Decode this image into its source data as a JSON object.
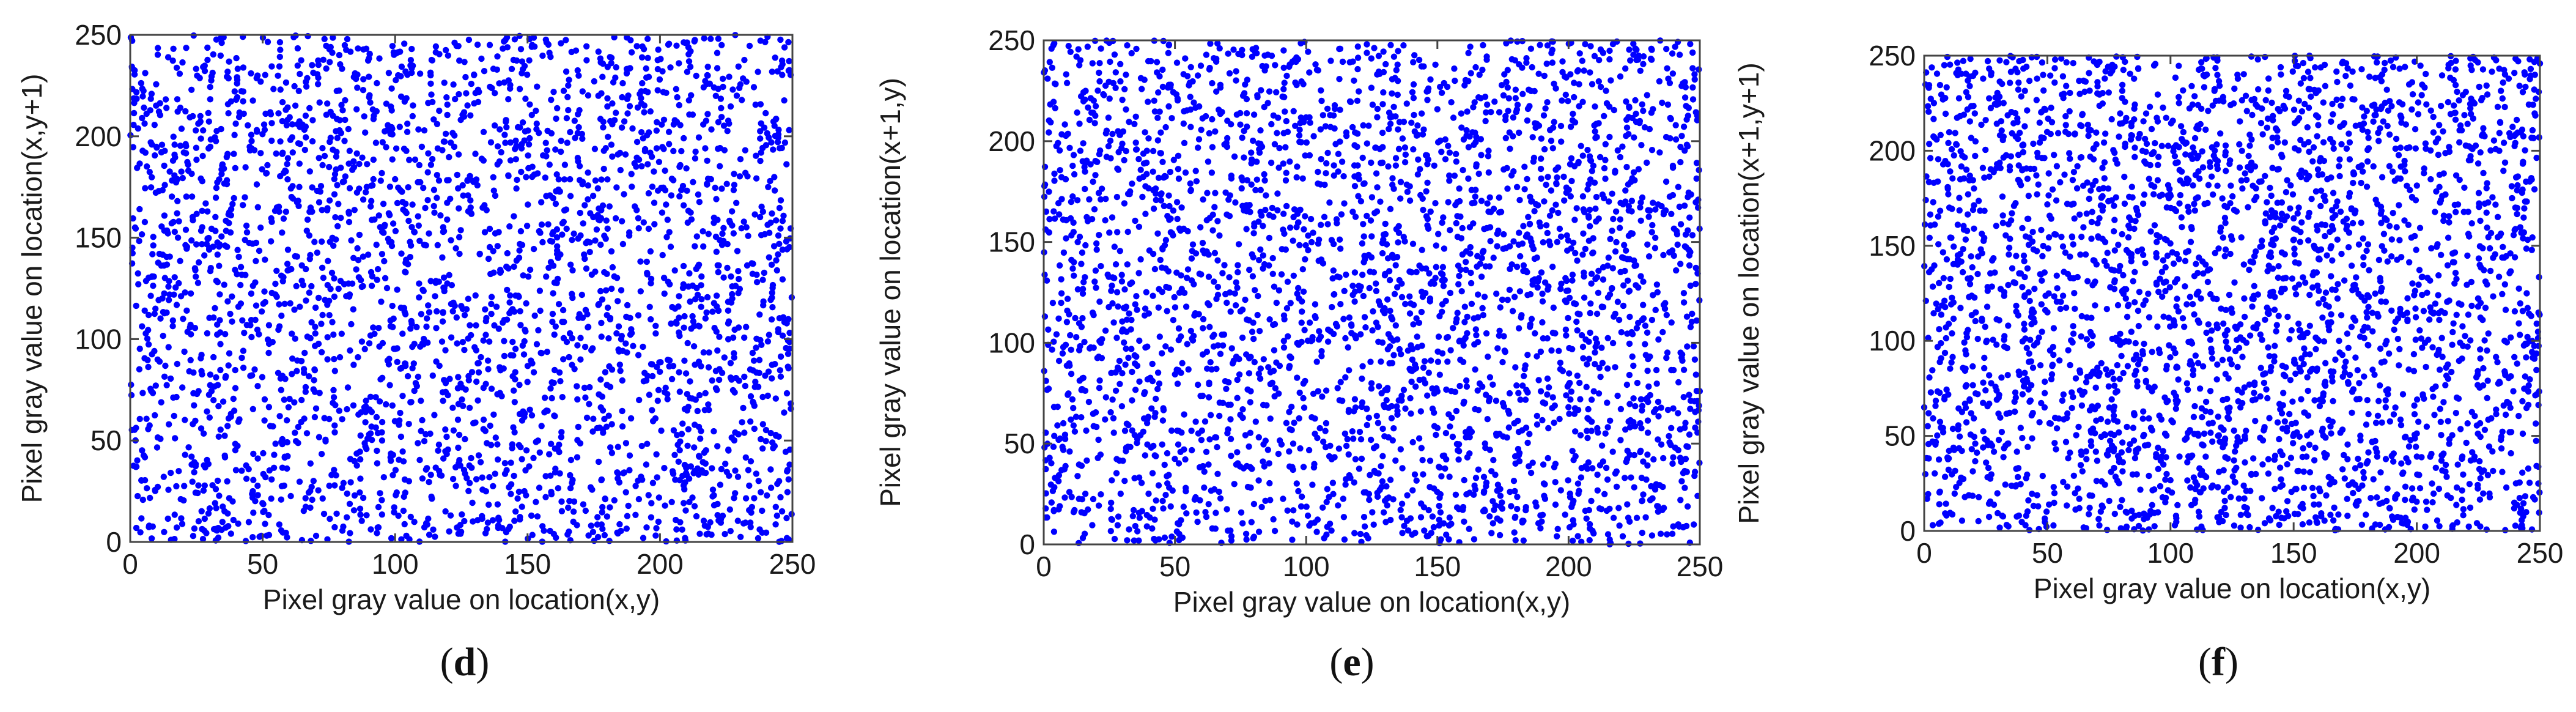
{
  "chart_data": [
    {
      "type": "scatter",
      "panel_label": "d",
      "xlabel": "Pixel gray value on location(x,y)",
      "ylabel": "Pixel gray value on location(x,y+1)",
      "xlim": [
        0,
        250
      ],
      "ylim": [
        0,
        250
      ],
      "xticks": [
        0,
        50,
        100,
        150,
        200,
        250
      ],
      "yticks": [
        0,
        50,
        100,
        150,
        200,
        250
      ],
      "grid": false,
      "marker_color": "#0000ff",
      "point_count": 3000,
      "distribution": "uniform"
    },
    {
      "type": "scatter",
      "panel_label": "e",
      "xlabel": "Pixel gray value on location(x,y)",
      "ylabel": "Pixel gray value on location(x+1,y)",
      "xlim": [
        0,
        250
      ],
      "ylim": [
        0,
        250
      ],
      "xticks": [
        0,
        50,
        100,
        150,
        200,
        250
      ],
      "yticks": [
        0,
        50,
        100,
        150,
        200,
        250
      ],
      "grid": false,
      "marker_color": "#0000ff",
      "point_count": 3000,
      "distribution": "uniform"
    },
    {
      "type": "scatter",
      "panel_label": "f",
      "xlabel": "Pixel gray value on location(x,y)",
      "ylabel": "Pixel gray value on location(x+1,y+1)",
      "xlim": [
        0,
        250
      ],
      "ylim": [
        0,
        250
      ],
      "xticks": [
        0,
        50,
        100,
        150,
        200,
        250
      ],
      "yticks": [
        0,
        50,
        100,
        150,
        200,
        250
      ],
      "grid": false,
      "marker_color": "#0000ff",
      "point_count": 3000,
      "distribution": "uniform"
    }
  ]
}
